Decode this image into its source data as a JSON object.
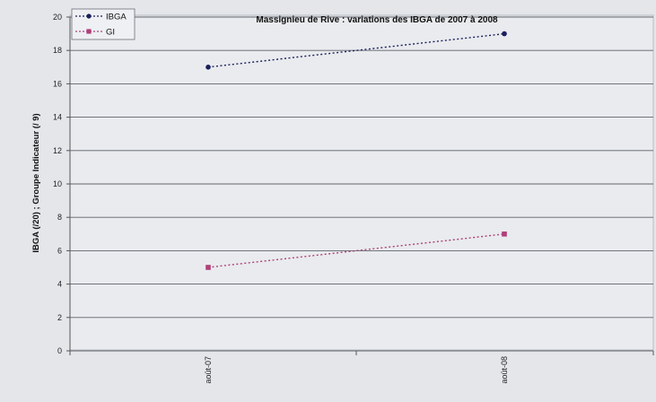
{
  "chart_data": {
    "type": "line",
    "title": "Massignieu de Rive : variations des IBGA de 2007 à 2008",
    "xlabel": "",
    "ylabel": "IBGA (/20) ; Groupe Indicateur (/ 9)",
    "categories": [
      "août-07",
      "août-08"
    ],
    "ylim": [
      0,
      20
    ],
    "yticks": [
      "0",
      "2",
      "4",
      "6",
      "8",
      "10",
      "12",
      "14",
      "16",
      "18",
      "20"
    ],
    "grid": true,
    "legend_position": "top-left",
    "series": [
      {
        "name": "IBGA",
        "values": [
          17,
          19
        ],
        "color": "#1a1f5c",
        "marker": "circle",
        "line_style": "dotted"
      },
      {
        "name": "GI",
        "values": [
          5,
          7
        ],
        "color": "#b0407a",
        "marker": "square",
        "line_style": "dotted"
      }
    ]
  }
}
